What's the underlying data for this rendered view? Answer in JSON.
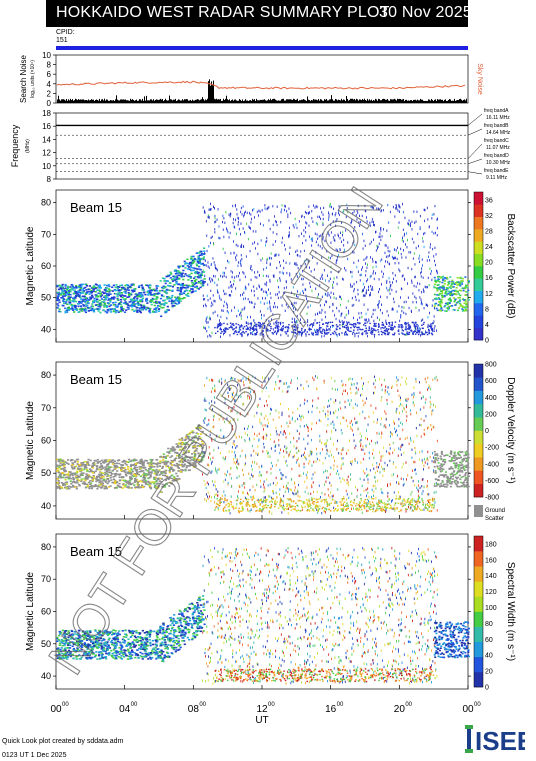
{
  "header": {
    "title": "HOKKAIDO WEST RADAR SUMMARY PLOT",
    "date": "30 Nov 2025"
  },
  "cpid": {
    "label": "CPID:",
    "value": "151"
  },
  "noise_panel": {
    "ylabel_main": "Search Noise",
    "ylabel_sub": "log₁₀ units (×10⁴)",
    "right_label": "Sky Noise",
    "ticks": [
      "0",
      "2",
      "4",
      "6",
      "8",
      "10"
    ],
    "sky_color": "#e0623a",
    "search_color": "#000000"
  },
  "freq_panel": {
    "ylabel_main": "Frequency",
    "ylabel_sub": "(MHz)",
    "ticks": [
      "8",
      "10",
      "12",
      "14",
      "16",
      "18"
    ],
    "bands": [
      {
        "name": "freq bandA",
        "value": "16.11 MHz"
      },
      {
        "name": "freq bandB",
        "value": "14.64 MHz"
      },
      {
        "name": "freq bandC",
        "value": "11.07 MHz"
      },
      {
        "name": "freq bandD",
        "value": "10.30 MHz"
      },
      {
        "name": "freq bandE",
        "value": "9.11 MHz"
      }
    ]
  },
  "watermark": "NOT FOR PUBLICATION",
  "panels": [
    {
      "beam": "Beam 15",
      "ylabel": "Magnetic Latitude",
      "yticks": [
        "40",
        "50",
        "60",
        "70",
        "80"
      ],
      "cbar_label": "Backscatter Power (dB)",
      "cbar_ticks": [
        "0",
        "4",
        "8",
        "12",
        "16",
        "20",
        "24",
        "28",
        "32",
        "36"
      ]
    },
    {
      "beam": "Beam 15",
      "ylabel": "Magnetic Latitude",
      "yticks": [
        "40",
        "50",
        "60",
        "70",
        "80"
      ],
      "cbar_label": "Doppler Velocity (m s⁻¹)",
      "cbar_ticks": [
        "-800",
        "-600",
        "-400",
        "-200",
        "0",
        "200",
        "400",
        "600",
        "800"
      ],
      "ground_label_1": "Ground",
      "ground_label_2": "Scatter",
      "ground_color": "#909090"
    },
    {
      "beam": "Beam 15",
      "ylabel": "Magnetic Latitude",
      "yticks": [
        "40",
        "50",
        "60",
        "70",
        "80"
      ],
      "cbar_label": "Spectral Width (m s⁻¹)",
      "cbar_ticks": [
        "0",
        "20",
        "40",
        "60",
        "80",
        "100",
        "120",
        "140",
        "160",
        "180"
      ]
    }
  ],
  "xaxis": {
    "label": "UT",
    "ticks": [
      "00",
      "04",
      "08",
      "12",
      "16",
      "20",
      "00"
    ],
    "tick_sup": "00"
  },
  "footer": {
    "line1": "Quick Look plot created by sddata.adm",
    "line2": "0123 UT  1 Dec 2025"
  },
  "logo": {
    "text": "ISEE"
  },
  "chart_data": [
    {
      "type": "line",
      "title": "Search Noise / Sky Noise",
      "ylim": [
        0,
        10
      ],
      "x_unit": "UT hours",
      "series": [
        {
          "name": "Sky Noise",
          "x": [
            0,
            2,
            4,
            6,
            8,
            9,
            9.5,
            12,
            16,
            20,
            22,
            24
          ],
          "values": [
            3.8,
            4.0,
            4.2,
            4.3,
            4.4,
            3.9,
            3.2,
            3.1,
            3.1,
            3.1,
            3.4,
            3.6
          ]
        }
      ]
    },
    {
      "type": "scatter",
      "title": "Frequency",
      "ylim": [
        8,
        18
      ],
      "series": [
        {
          "name": "freq bandA",
          "x": [
            0,
            24
          ],
          "values": [
            16.11,
            16.11
          ]
        }
      ]
    },
    {
      "type": "heatmap",
      "title": "Backscatter Power (dB)",
      "xlim": [
        0,
        24
      ],
      "ylim": [
        36,
        84
      ],
      "clim": [
        0,
        36
      ],
      "regions": [
        {
          "x": [
            0,
            8.5
          ],
          "y": [
            45,
            55
          ],
          "value": 14
        },
        {
          "x": [
            4,
            8
          ],
          "y": [
            42,
            46
          ],
          "value": 2
        },
        {
          "x": [
            9,
            22
          ],
          "y": [
            38,
            80
          ],
          "value": 2
        },
        {
          "x": [
            9.5,
            22
          ],
          "y": [
            38,
            43
          ],
          "value": 4
        },
        {
          "x": [
            22,
            24
          ],
          "y": [
            46,
            58
          ],
          "value": 14
        }
      ]
    },
    {
      "type": "heatmap",
      "title": "Doppler Velocity (m s⁻¹)",
      "xlim": [
        0,
        24
      ],
      "ylim": [
        36,
        84
      ],
      "clim": [
        -800,
        800
      ],
      "regions": [
        {
          "x": [
            0,
            8.5
          ],
          "y": [
            45,
            55
          ],
          "value": "ground"
        },
        {
          "x": [
            9,
            22
          ],
          "y": [
            38,
            80
          ],
          "value": 0
        },
        {
          "x": [
            22,
            24
          ],
          "y": [
            46,
            58
          ],
          "value": "ground"
        }
      ]
    },
    {
      "type": "heatmap",
      "title": "Spectral Width (m s⁻¹)",
      "xlim": [
        0,
        24
      ],
      "ylim": [
        36,
        84
      ],
      "clim": [
        0,
        180
      ],
      "regions": [
        {
          "x": [
            0,
            8.5
          ],
          "y": [
            45,
            55
          ],
          "value": 20
        },
        {
          "x": [
            9,
            22
          ],
          "y": [
            38,
            80
          ],
          "value": 120
        },
        {
          "x": [
            22,
            24
          ],
          "y": [
            46,
            58
          ],
          "value": 20
        }
      ]
    }
  ]
}
